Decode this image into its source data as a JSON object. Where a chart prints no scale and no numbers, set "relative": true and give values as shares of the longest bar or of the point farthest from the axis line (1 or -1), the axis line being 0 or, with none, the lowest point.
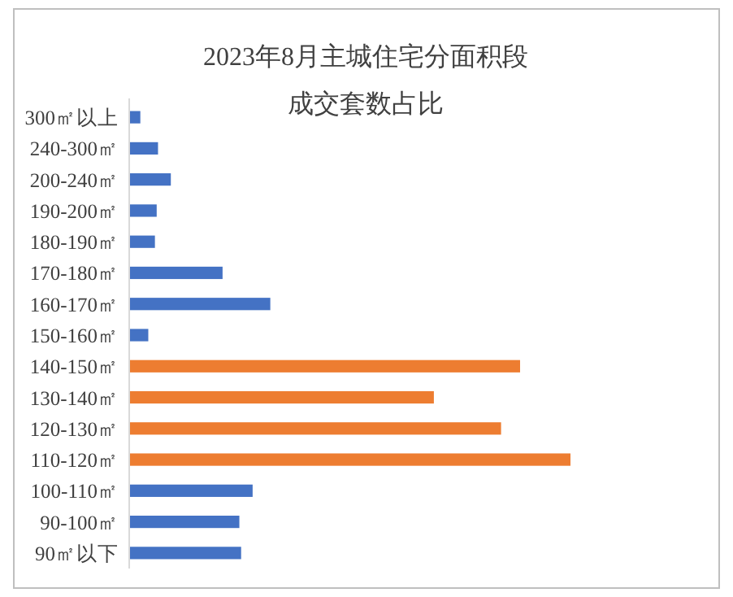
{
  "chart_data": {
    "type": "bar",
    "orientation": "horizontal",
    "relative": true,
    "title": "2023年8月主城住宅分面积段成交套数占比",
    "categories": [
      "300㎡以上",
      "240-300㎡",
      "200-240㎡",
      "190-200㎡",
      "180-190㎡",
      "170-180㎡",
      "160-170㎡",
      "150-160㎡",
      "140-150㎡",
      "130-140㎡",
      "120-130㎡",
      "110-120㎡",
      "100-110㎡",
      "90-100㎡",
      "90㎡以下"
    ],
    "values": [
      0.027,
      0.067,
      0.096,
      0.064,
      0.06,
      0.213,
      0.321,
      0.045,
      0.886,
      0.691,
      0.843,
      1,
      0.281,
      0.251,
      0.255
    ],
    "colors": [
      "#4472c4",
      "#4472c4",
      "#4472c4",
      "#4472c4",
      "#4472c4",
      "#4472c4",
      "#4472c4",
      "#4472c4",
      "#ed7d31",
      "#ed7d31",
      "#ed7d31",
      "#ed7d31",
      "#4472c4",
      "#4472c4",
      "#4472c4"
    ]
  }
}
